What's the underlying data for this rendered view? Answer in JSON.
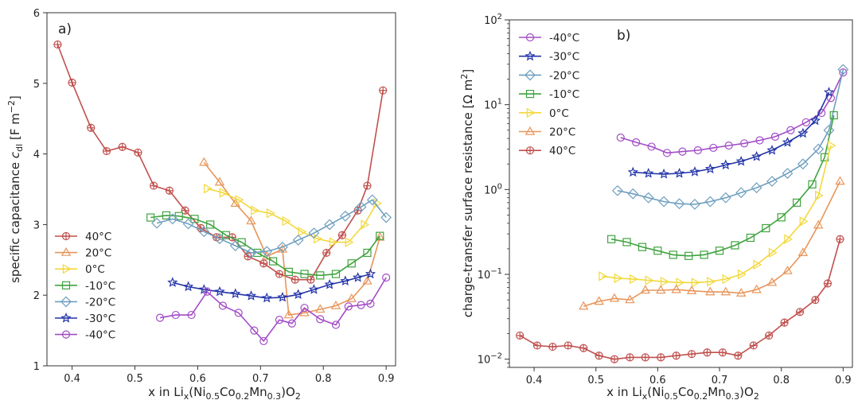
{
  "colors": {
    "40C": "#c0504d",
    "20C": "#e8955a",
    "0C": "#f2d83b",
    "m10C": "#3fa33f",
    "m20C": "#6f9fbf",
    "m30C": "#2234a8",
    "m40C": "#a24cc6"
  },
  "chart_data": [
    {
      "type": "line",
      "panel_label": "a)",
      "xlabel_main": "x in Li",
      "xlabel_sub_x": "x",
      "xlabel_mid": "(Ni",
      "xlabel_sub1": "0.5",
      "xlabel_co": "Co",
      "xlabel_sub2": "0.2",
      "xlabel_mn": "Mn",
      "xlabel_sub3": "0.3",
      "xlabel_end": ")O",
      "xlabel_sub4": "2",
      "ylabel_main": "specific capacitance ",
      "ylabel_c": "c",
      "ylabel_dl": "dl",
      "ylabel_unit": " [F m",
      "ylabel_exp": "−2",
      "ylabel_close": "]",
      "xlim": [
        0.36,
        0.915
      ],
      "ylim": [
        1,
        6
      ],
      "xticks": [
        "0.4",
        "0.5",
        "0.6",
        "0.7",
        "0.8",
        "0.9"
      ],
      "yticks": [
        "1",
        "2",
        "3",
        "4",
        "5",
        "6"
      ],
      "legend_position": "lower-left",
      "series": [
        {
          "name": "40°C",
          "key": "40C",
          "marker": "plus-circle",
          "x": [
            0.377,
            0.4,
            0.43,
            0.455,
            0.48,
            0.505,
            0.53,
            0.555,
            0.58,
            0.605,
            0.63,
            0.655,
            0.68,
            0.705,
            0.73,
            0.755,
            0.78,
            0.805,
            0.83,
            0.855,
            0.87,
            0.895
          ],
          "y": [
            5.55,
            5.01,
            4.37,
            4.04,
            4.1,
            4.02,
            3.55,
            3.48,
            3.2,
            2.95,
            2.82,
            2.82,
            2.55,
            2.45,
            2.3,
            2.22,
            2.22,
            2.6,
            2.85,
            3.2,
            3.55,
            4.9
          ]
        },
        {
          "name": "20°C",
          "key": "20C",
          "marker": "triangle",
          "x": [
            0.61,
            0.635,
            0.66,
            0.685,
            0.71,
            0.735,
            0.745,
            0.77,
            0.795,
            0.82,
            0.845,
            0.87,
            0.89
          ],
          "y": [
            3.88,
            3.6,
            3.3,
            3.05,
            2.55,
            2.65,
            1.72,
            1.75,
            1.8,
            1.85,
            1.95,
            2.2,
            2.82
          ]
        },
        {
          "name": "0°C",
          "key": "0C",
          "marker": "triangle-right",
          "x": [
            0.615,
            0.64,
            0.665,
            0.69,
            0.715,
            0.74,
            0.765,
            0.79,
            0.815,
            0.84,
            0.865,
            0.885
          ],
          "y": [
            3.51,
            3.45,
            3.35,
            3.2,
            3.16,
            3.05,
            2.9,
            2.8,
            2.75,
            2.75,
            3.0,
            3.3
          ]
        },
        {
          "name": "-10°C",
          "key": "m10C",
          "marker": "square",
          "x": [
            0.525,
            0.55,
            0.57,
            0.595,
            0.62,
            0.645,
            0.67,
            0.695,
            0.72,
            0.745,
            0.77,
            0.795,
            0.82,
            0.845,
            0.87,
            0.89
          ],
          "y": [
            3.1,
            3.13,
            3.12,
            3.08,
            3.0,
            2.85,
            2.75,
            2.6,
            2.48,
            2.33,
            2.3,
            2.28,
            2.3,
            2.45,
            2.6,
            2.84
          ]
        },
        {
          "name": "-20°C",
          "key": "m20C",
          "marker": "diamond",
          "x": [
            0.535,
            0.56,
            0.585,
            0.61,
            0.635,
            0.66,
            0.685,
            0.71,
            0.735,
            0.76,
            0.785,
            0.81,
            0.835,
            0.86,
            0.878,
            0.9
          ],
          "y": [
            3.02,
            3.08,
            3.01,
            2.9,
            2.8,
            2.7,
            2.6,
            2.62,
            2.68,
            2.78,
            2.88,
            3.0,
            3.12,
            3.25,
            3.35,
            3.1
          ]
        },
        {
          "name": "-30°C",
          "key": "m30C",
          "marker": "star",
          "x": [
            0.56,
            0.585,
            0.61,
            0.635,
            0.66,
            0.685,
            0.71,
            0.735,
            0.76,
            0.785,
            0.81,
            0.835,
            0.855,
            0.875
          ],
          "y": [
            2.18,
            2.12,
            2.08,
            2.05,
            2.02,
            1.99,
            1.96,
            1.97,
            2.01,
            2.08,
            2.15,
            2.2,
            2.25,
            2.3
          ]
        },
        {
          "name": "-40°C",
          "key": "m40C",
          "marker": "circle",
          "x": [
            0.54,
            0.565,
            0.59,
            0.615,
            0.64,
            0.665,
            0.69,
            0.705,
            0.73,
            0.75,
            0.77,
            0.795,
            0.82,
            0.84,
            0.86,
            0.875,
            0.9
          ],
          "y": [
            1.68,
            1.72,
            1.72,
            2.05,
            1.85,
            1.75,
            1.5,
            1.35,
            1.65,
            1.6,
            1.82,
            1.66,
            1.58,
            1.84,
            1.86,
            1.88,
            2.25
          ]
        }
      ]
    },
    {
      "type": "line",
      "panel_label": "b)",
      "ylabel": "charge-transfer surface resistance [Ω m",
      "ylabel_exp": "2",
      "ylabel_close": "]",
      "yscale": "log",
      "xlim": [
        0.36,
        0.915
      ],
      "ylim": [
        0.008,
        100
      ],
      "xticks": [
        "0.4",
        "0.5",
        "0.6",
        "0.7",
        "0.8",
        "0.9"
      ],
      "ytick_base": "10",
      "yticks_exp": [
        "−2",
        "−1",
        "0",
        "1",
        "2"
      ],
      "legend_position": "upper-left",
      "series": [
        {
          "name": "-40°C",
          "key": "m40C",
          "marker": "circle",
          "x": [
            0.54,
            0.565,
            0.59,
            0.615,
            0.64,
            0.665,
            0.69,
            0.715,
            0.74,
            0.765,
            0.79,
            0.815,
            0.84,
            0.865,
            0.88,
            0.9
          ],
          "y": [
            4.1,
            3.6,
            3.2,
            2.7,
            2.8,
            2.9,
            3.1,
            3.3,
            3.5,
            3.8,
            4.2,
            5.0,
            6.2,
            8.0,
            12,
            24
          ]
        },
        {
          "name": "-30°C",
          "key": "m30C",
          "marker": "star",
          "x": [
            0.56,
            0.585,
            0.61,
            0.635,
            0.66,
            0.685,
            0.71,
            0.735,
            0.76,
            0.785,
            0.81,
            0.835,
            0.855,
            0.877
          ],
          "y": [
            1.6,
            1.55,
            1.52,
            1.55,
            1.62,
            1.75,
            1.95,
            2.15,
            2.45,
            2.9,
            3.6,
            4.6,
            6.5,
            14
          ]
        },
        {
          "name": "-20°C",
          "key": "m20C",
          "marker": "diamond",
          "x": [
            0.535,
            0.56,
            0.585,
            0.61,
            0.635,
            0.66,
            0.685,
            0.71,
            0.735,
            0.76,
            0.785,
            0.81,
            0.835,
            0.86,
            0.877,
            0.9
          ],
          "y": [
            0.97,
            0.89,
            0.8,
            0.72,
            0.68,
            0.67,
            0.72,
            0.8,
            0.92,
            1.05,
            1.25,
            1.55,
            2.0,
            3.0,
            5.0,
            26
          ]
        },
        {
          "name": "-10°C",
          "key": "m10C",
          "marker": "square",
          "x": [
            0.525,
            0.55,
            0.575,
            0.6,
            0.625,
            0.65,
            0.675,
            0.7,
            0.725,
            0.75,
            0.775,
            0.8,
            0.825,
            0.85,
            0.87,
            0.885
          ],
          "y": [
            0.26,
            0.24,
            0.21,
            0.19,
            0.17,
            0.165,
            0.17,
            0.19,
            0.22,
            0.27,
            0.35,
            0.47,
            0.7,
            1.15,
            2.4,
            7.5
          ]
        },
        {
          "name": "0°C",
          "key": "0C",
          "marker": "triangle-right",
          "x": [
            0.51,
            0.535,
            0.56,
            0.585,
            0.61,
            0.635,
            0.66,
            0.685,
            0.71,
            0.735,
            0.76,
            0.785,
            0.81,
            0.835,
            0.86,
            0.88
          ],
          "y": [
            0.095,
            0.09,
            0.088,
            0.085,
            0.082,
            0.08,
            0.08,
            0.082,
            0.088,
            0.1,
            0.13,
            0.18,
            0.26,
            0.42,
            0.85,
            3.3
          ]
        },
        {
          "name": "20°C",
          "key": "20C",
          "marker": "triangle",
          "x": [
            0.48,
            0.505,
            0.53,
            0.555,
            0.58,
            0.605,
            0.63,
            0.655,
            0.685,
            0.71,
            0.735,
            0.76,
            0.785,
            0.81,
            0.835,
            0.86,
            0.895
          ],
          "y": [
            0.042,
            0.048,
            0.052,
            0.05,
            0.065,
            0.065,
            0.066,
            0.064,
            0.062,
            0.062,
            0.06,
            0.066,
            0.08,
            0.11,
            0.18,
            0.38,
            1.25
          ]
        },
        {
          "name": "40°C",
          "key": "40C",
          "marker": "plus-circle",
          "x": [
            0.377,
            0.405,
            0.43,
            0.455,
            0.48,
            0.505,
            0.53,
            0.555,
            0.58,
            0.605,
            0.63,
            0.655,
            0.68,
            0.705,
            0.73,
            0.755,
            0.78,
            0.805,
            0.83,
            0.855,
            0.875,
            0.895
          ],
          "y": [
            0.019,
            0.0145,
            0.014,
            0.0145,
            0.0135,
            0.011,
            0.01,
            0.0105,
            0.0105,
            0.0105,
            0.011,
            0.0115,
            0.012,
            0.012,
            0.011,
            0.0145,
            0.019,
            0.027,
            0.036,
            0.05,
            0.078,
            0.26
          ]
        }
      ]
    }
  ]
}
